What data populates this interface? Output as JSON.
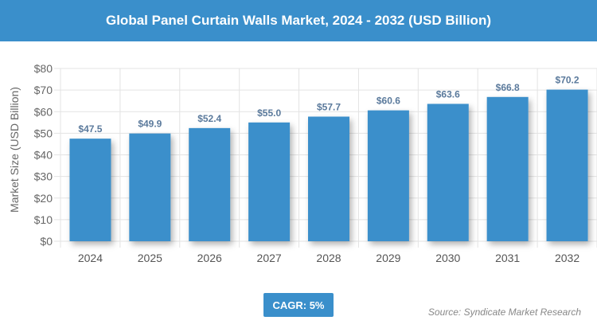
{
  "header": {
    "title": "Global Panel Curtain Walls Market, 2024 - 2032 (USD Billion)"
  },
  "chart_data": {
    "type": "bar",
    "title": "Global Panel Curtain Walls Market, 2024 - 2032 (USD Billion)",
    "categories": [
      "2024",
      "2025",
      "2026",
      "2027",
      "2028",
      "2029",
      "2030",
      "2031",
      "2032"
    ],
    "values": [
      47.5,
      49.9,
      52.4,
      55.0,
      57.7,
      60.6,
      63.6,
      66.8,
      70.2
    ],
    "data_labels": [
      "$47.5",
      "$49.9",
      "$52.4",
      "$55.0",
      "$57.7",
      "$60.6",
      "$63.6",
      "$66.8",
      "$70.2"
    ],
    "ylabel": "Market Size (USD Billion)",
    "xlabel": "",
    "ylim": [
      0,
      80
    ],
    "yticks": [
      "$0",
      "$10",
      "$20",
      "$30",
      "$40",
      "$50",
      "$60",
      "$70",
      "$80"
    ],
    "grid": true,
    "bar_color": "#3a8fcb",
    "label_color": "#5b7a9c"
  },
  "footer": {
    "cagr": "CAGR: 5%",
    "source": "Source: Syndicate Market Research"
  }
}
